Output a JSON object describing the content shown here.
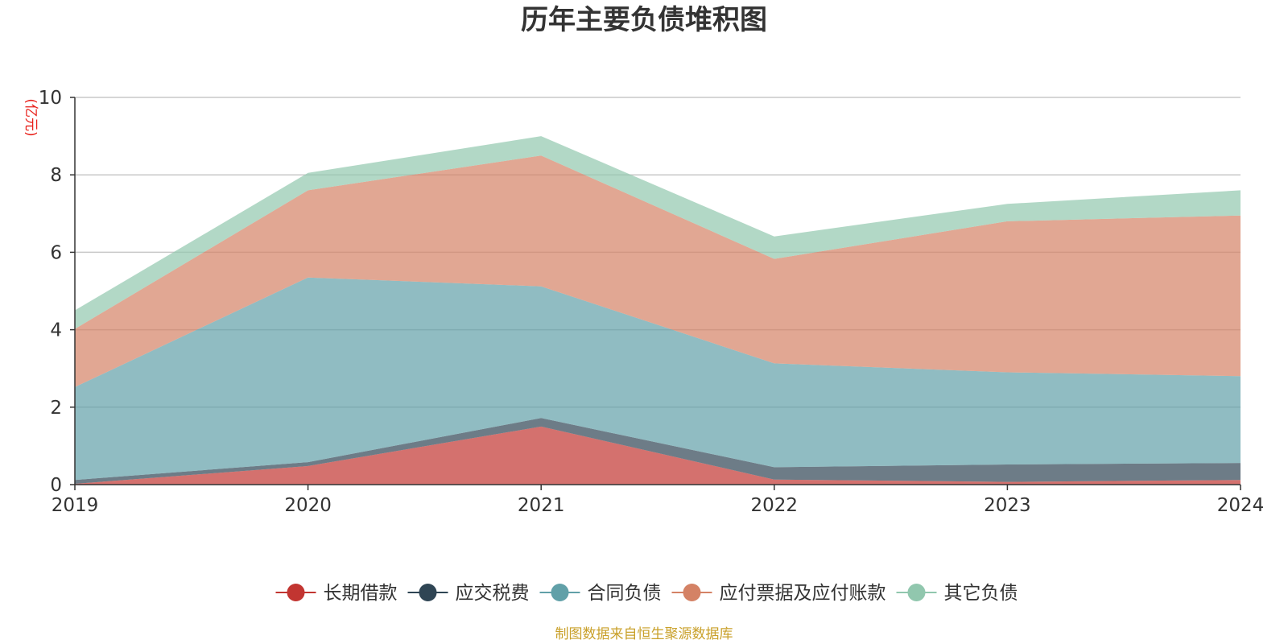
{
  "chart_data": {
    "type": "area",
    "stacked": true,
    "title": "历年主要负债堆积图",
    "unit_label": "(亿元)",
    "x": [
      "2019",
      "2020",
      "2021",
      "2022",
      "2023",
      "2024"
    ],
    "ylim": [
      0,
      10
    ],
    "yticks": [
      "0",
      "2",
      "4",
      "6",
      "8",
      "10"
    ],
    "grid": true,
    "legend_position": "bottom",
    "series": [
      {
        "name": "长期借款",
        "color": "#c23531",
        "values": [
          0.02,
          0.48,
          1.5,
          0.13,
          0.07,
          0.12
        ]
      },
      {
        "name": "应交税费",
        "color": "#2f4554",
        "values": [
          0.1,
          0.1,
          0.22,
          0.32,
          0.45,
          0.44
        ]
      },
      {
        "name": "合同负债",
        "color": "#61a0a8",
        "values": [
          2.4,
          4.77,
          3.4,
          2.68,
          2.38,
          2.24
        ]
      },
      {
        "name": "应付票据及应付账款",
        "color": "#d48265",
        "values": [
          1.5,
          2.25,
          3.38,
          2.7,
          3.9,
          4.15
        ]
      },
      {
        "name": "其它负债",
        "color": "#91c7ae",
        "values": [
          0.48,
          0.45,
          0.5,
          0.58,
          0.45,
          0.65
        ]
      }
    ]
  },
  "source_note": "制图数据来自恒生聚源数据库"
}
